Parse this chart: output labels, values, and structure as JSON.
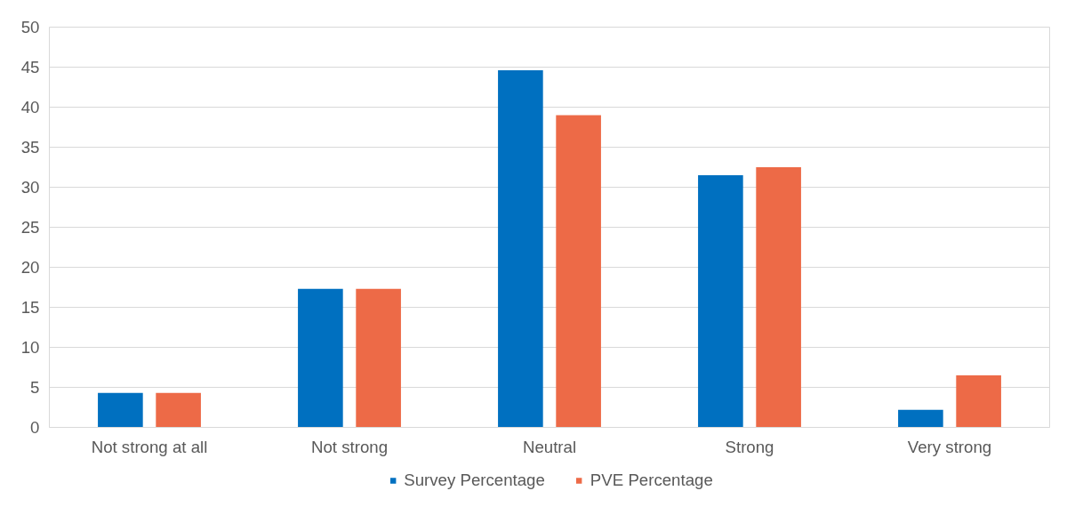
{
  "chart_data": {
    "type": "bar",
    "categories": [
      "Not strong at all",
      "Not strong",
      "Neutral",
      "Strong",
      "Very strong"
    ],
    "series": [
      {
        "name": "Survey Percentage",
        "color": "#0070c0",
        "values": [
          4.3,
          17.3,
          44.6,
          31.5,
          2.2
        ]
      },
      {
        "name": "PVE Percentage",
        "color": "#ed6a47",
        "values": [
          4.3,
          17.3,
          39.0,
          32.5,
          6.5
        ]
      }
    ],
    "ylim": [
      0,
      50
    ],
    "yticks": [
      0,
      5,
      10,
      15,
      20,
      25,
      30,
      35,
      40,
      45,
      50
    ],
    "grid": "y",
    "legend": "bottom"
  }
}
